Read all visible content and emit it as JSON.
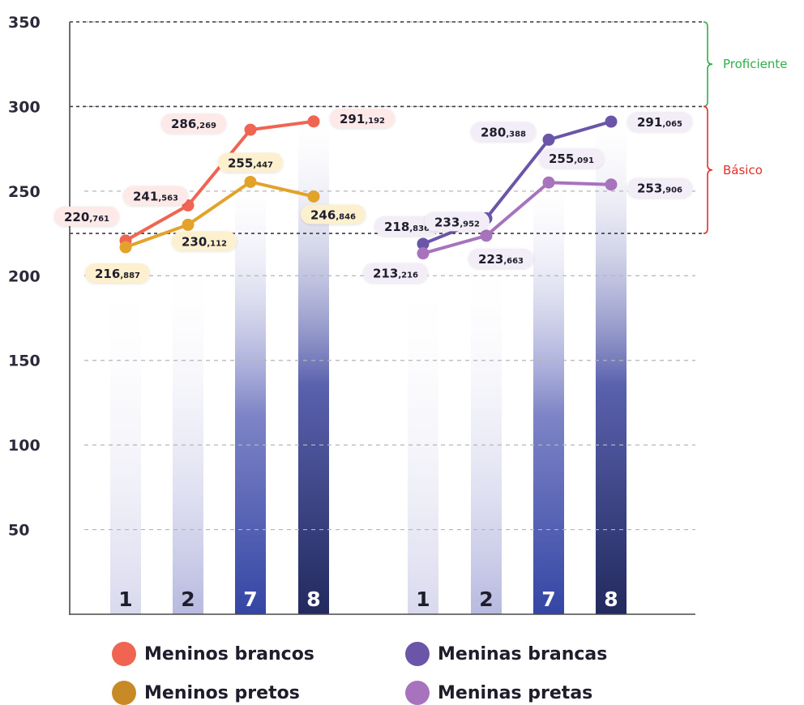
{
  "chart_data": {
    "type": "bar+line",
    "y_ticks": [
      "50",
      "100",
      "150",
      "200",
      "250",
      "300",
      "350"
    ],
    "ylim": [
      0,
      350
    ],
    "grid": true,
    "groups": [
      {
        "categories": [
          "1",
          "2",
          "7",
          "8"
        ],
        "series": [
          {
            "name": "Meninos brancos",
            "color": "#f06452",
            "values": [
              220.761,
              241.563,
              286.269,
              291.192
            ],
            "labels": [
              [
                "220",
                ",761"
              ],
              [
                "241",
                ",563"
              ],
              [
                "286",
                ",269"
              ],
              [
                "291",
                ",192"
              ]
            ]
          },
          {
            "name": "Meninos pretos",
            "color": "#e3a32b",
            "values": [
              216.887,
              230.112,
              255.447,
              246.846
            ],
            "labels": [
              [
                "216",
                ",887"
              ],
              [
                "230",
                ",112"
              ],
              [
                "255",
                ",447"
              ],
              [
                "246",
                ",846"
              ]
            ]
          }
        ]
      },
      {
        "categories": [
          "1",
          "2",
          "7",
          "8"
        ],
        "series": [
          {
            "name": "Meninas brancas",
            "color": "#6a55a8",
            "values": [
              218.836,
              233.952,
              280.388,
              291.065
            ],
            "labels": [
              [
                "218",
                ",836"
              ],
              [
                "233",
                ",952"
              ],
              [
                "280",
                ",388"
              ],
              [
                "291",
                ",065"
              ]
            ]
          },
          {
            "name": "Meninas pretas",
            "color": "#a873bd",
            "values": [
              213.216,
              223.663,
              255.091,
              253.906
            ],
            "labels": [
              [
                "213",
                ",216"
              ],
              [
                "223",
                ",663"
              ],
              [
                "255",
                ",091"
              ],
              [
                "253",
                ",906"
              ]
            ]
          }
        ]
      }
    ],
    "reference_lines": [
      225,
      300,
      350
    ],
    "bands": [
      {
        "label": "Proficiente",
        "from": 300,
        "to": 350,
        "color": "#2fae4a"
      },
      {
        "label": "Básico",
        "from": 225,
        "to": 300,
        "color": "#e0302a"
      }
    ]
  },
  "legend": [
    {
      "name": "Meninos brancos",
      "color": "#f06452"
    },
    {
      "name": "Meninas brancas",
      "color": "#6a55a8"
    },
    {
      "name": "Meninos pretos",
      "color": "#c88a27"
    },
    {
      "name": "Meninas pretas",
      "color": "#a873bd"
    }
  ]
}
